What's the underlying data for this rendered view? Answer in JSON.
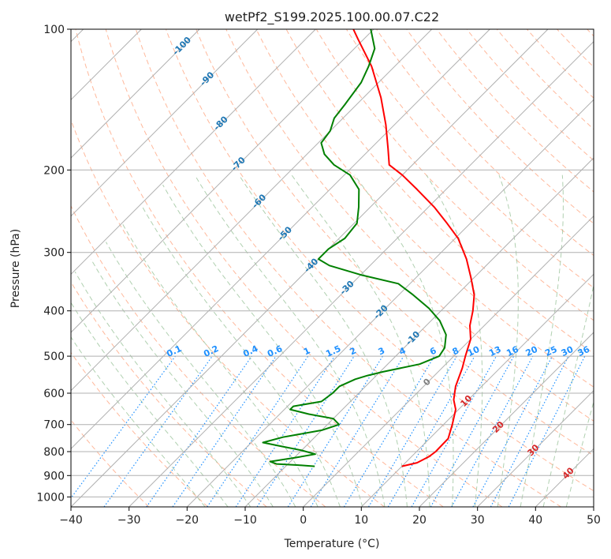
{
  "chart_data": {
    "type": "line",
    "title": "wetPf2_S199.2025.100.00.07.C22",
    "xlabel": "Temperature (°C)",
    "ylabel": "Pressure (hPa)",
    "xlim": [
      -40,
      50
    ],
    "ylim": [
      1050,
      100
    ],
    "y_scale": "log",
    "x_ticks": [
      -40,
      -30,
      -20,
      -10,
      0,
      10,
      20,
      30,
      40,
      50
    ],
    "y_ticks": [
      100,
      200,
      300,
      400,
      500,
      600,
      700,
      800,
      900,
      1000
    ],
    "grid": true,
    "skew": true,
    "series": [
      {
        "color": "#ff0000",
        "values": [
          {
            "p": 860,
            "t": 10.0
          },
          {
            "p": 845,
            "t": 12.0
          },
          {
            "p": 820,
            "t": 13.0
          },
          {
            "p": 800,
            "t": 13.3
          },
          {
            "p": 750,
            "t": 13.2
          },
          {
            "p": 700,
            "t": 11.5
          },
          {
            "p": 650,
            "t": 9.5
          },
          {
            "p": 620,
            "t": 7.5
          },
          {
            "p": 580,
            "t": 5.5
          },
          {
            "p": 530,
            "t": 3.5
          },
          {
            "p": 500,
            "t": 2.0
          },
          {
            "p": 460,
            "t": 0.0
          },
          {
            "p": 430,
            "t": -2.5
          },
          {
            "p": 400,
            "t": -4.5
          },
          {
            "p": 370,
            "t": -7.0
          },
          {
            "p": 340,
            "t": -10.5
          },
          {
            "p": 310,
            "t": -14.5
          },
          {
            "p": 280,
            "t": -19.5
          },
          {
            "p": 260,
            "t": -24.0
          },
          {
            "p": 240,
            "t": -29.0
          },
          {
            "p": 220,
            "t": -35.0
          },
          {
            "p": 205,
            "t": -40.0
          },
          {
            "p": 195,
            "t": -44.0
          },
          {
            "p": 180,
            "t": -47.0
          },
          {
            "p": 160,
            "t": -51.5
          },
          {
            "p": 140,
            "t": -57.0
          },
          {
            "p": 120,
            "t": -64.0
          },
          {
            "p": 105,
            "t": -71.0
          },
          {
            "p": 100,
            "t": -73.5
          }
        ]
      },
      {
        "color": "#008000",
        "values": [
          {
            "p": 860,
            "t": -5.0
          },
          {
            "p": 855,
            "t": -8.0
          },
          {
            "p": 850,
            "t": -12.0
          },
          {
            "p": 840,
            "t": -13.5
          },
          {
            "p": 825,
            "t": -10.0
          },
          {
            "p": 810,
            "t": -7.0
          },
          {
            "p": 795,
            "t": -10.0
          },
          {
            "p": 780,
            "t": -14.0
          },
          {
            "p": 765,
            "t": -18.0
          },
          {
            "p": 745,
            "t": -15.5
          },
          {
            "p": 720,
            "t": -10.0
          },
          {
            "p": 700,
            "t": -8.0
          },
          {
            "p": 680,
            "t": -10.0
          },
          {
            "p": 665,
            "t": -15.0
          },
          {
            "p": 650,
            "t": -19.0
          },
          {
            "p": 640,
            "t": -19.0
          },
          {
            "p": 625,
            "t": -15.0
          },
          {
            "p": 600,
            "t": -14.5
          },
          {
            "p": 580,
            "t": -14.5
          },
          {
            "p": 560,
            "t": -13.0
          },
          {
            "p": 550,
            "t": -11.5
          },
          {
            "p": 540,
            "t": -9.5
          },
          {
            "p": 520,
            "t": -4.5
          },
          {
            "p": 500,
            "t": -2.5
          },
          {
            "p": 480,
            "t": -3.0
          },
          {
            "p": 450,
            "t": -5.0
          },
          {
            "p": 420,
            "t": -8.5
          },
          {
            "p": 395,
            "t": -12.5
          },
          {
            "p": 370,
            "t": -17.5
          },
          {
            "p": 350,
            "t": -22.0
          },
          {
            "p": 335,
            "t": -30.0
          },
          {
            "p": 320,
            "t": -37.0
          },
          {
            "p": 310,
            "t": -40.0
          },
          {
            "p": 295,
            "t": -40.0
          },
          {
            "p": 280,
            "t": -39.0
          },
          {
            "p": 260,
            "t": -39.5
          },
          {
            "p": 240,
            "t": -42.0
          },
          {
            "p": 220,
            "t": -45.0
          },
          {
            "p": 205,
            "t": -49.0
          },
          {
            "p": 195,
            "t": -53.5
          },
          {
            "p": 185,
            "t": -57.0
          },
          {
            "p": 175,
            "t": -59.5
          },
          {
            "p": 165,
            "t": -60.0
          },
          {
            "p": 155,
            "t": -61.5
          },
          {
            "p": 145,
            "t": -62.0
          },
          {
            "p": 130,
            "t": -63.0
          },
          {
            "p": 120,
            "t": -64.5
          },
          {
            "p": 110,
            "t": -66.5
          },
          {
            "p": 100,
            "t": -70.5
          }
        ]
      }
    ],
    "isotherm_labels": [
      -100,
      -90,
      -80,
      -70,
      -60,
      -50,
      -40,
      -30,
      -20,
      -10,
      0,
      10,
      20,
      30,
      40
    ],
    "mixing_ratio_labels": [
      "0.1",
      "0.2",
      "0.4",
      "0.6",
      "1",
      "1.5",
      "2",
      "3",
      "4",
      "6",
      "8",
      "10",
      "13",
      "16",
      "20",
      "25",
      "30",
      "36"
    ],
    "colors": {
      "temperature": "#ff0000",
      "dewpoint": "#008000",
      "isotherm_cold_label": "#1f77b4",
      "isotherm_zero_label": "#808080",
      "isotherm_warm_label": "#d62728",
      "mixing_ratio": "#1e90ff",
      "dry_adiabat": "#ffa07a",
      "moist_adiabat": "#8fbc8f",
      "grid": "#b0b0b0"
    }
  }
}
